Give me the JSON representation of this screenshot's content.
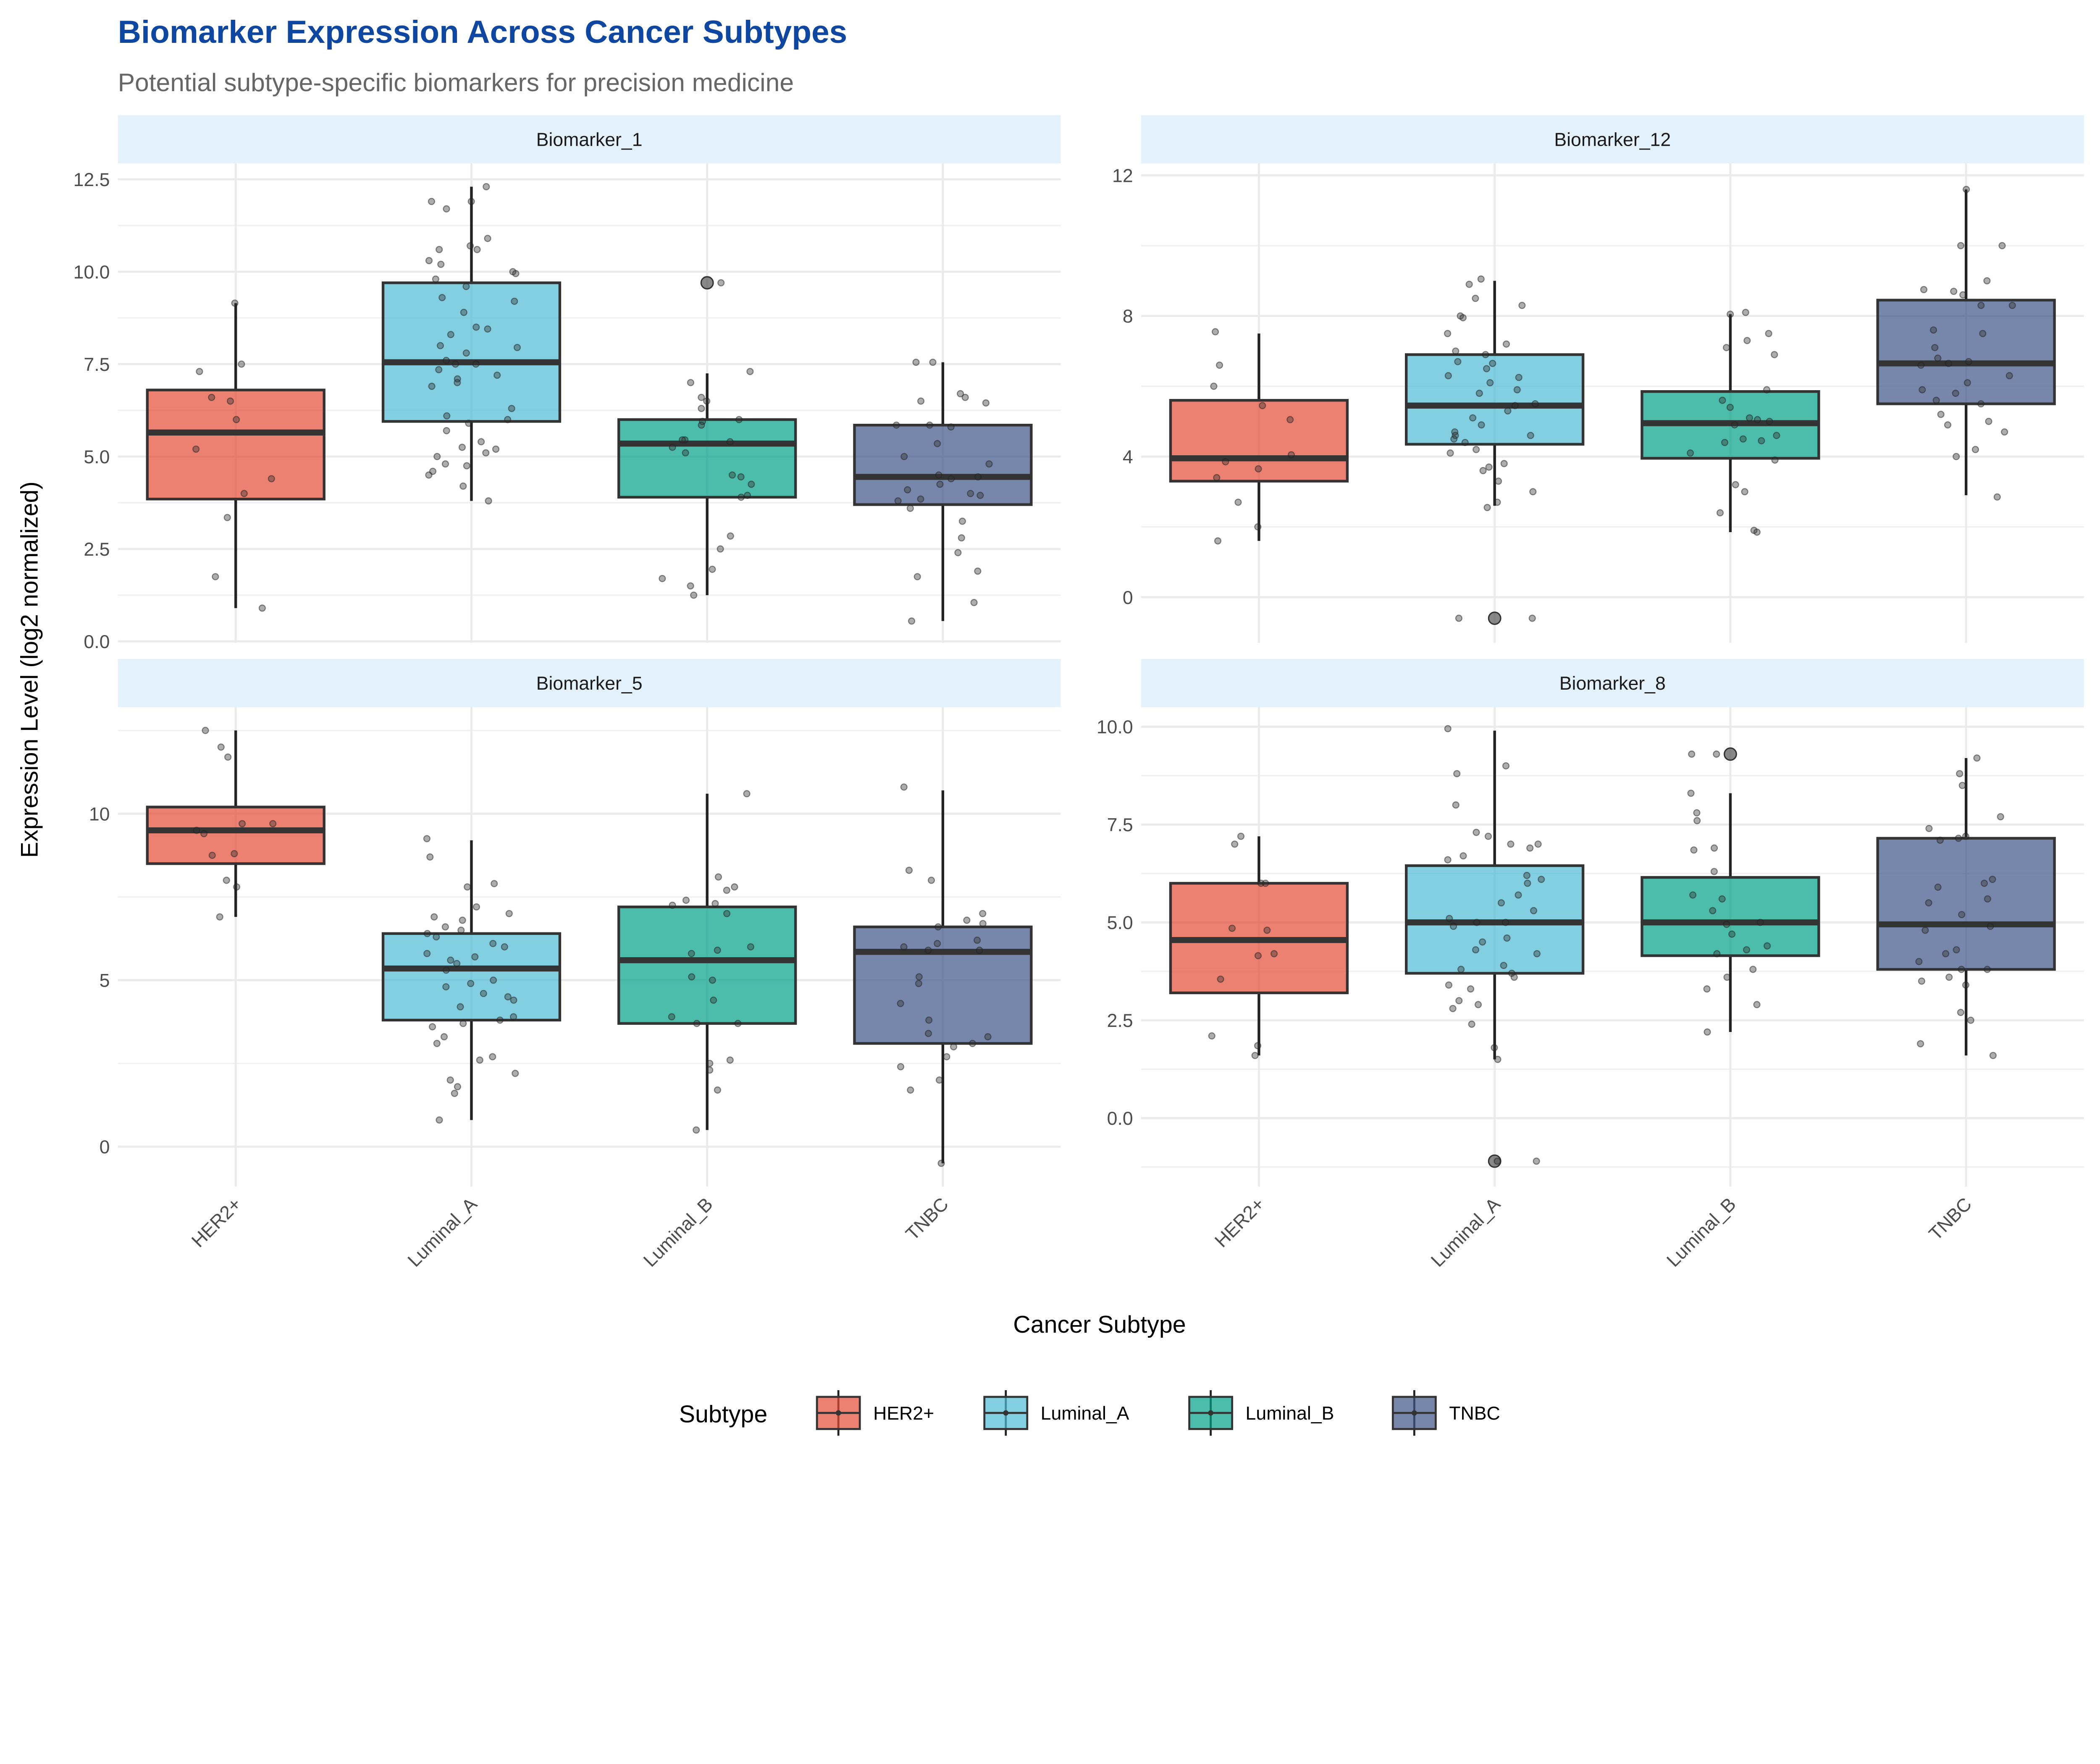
{
  "chart_data": {
    "type": "boxplot",
    "title": "Biomarker Expression Across Cancer Subtypes",
    "subtitle": "Potential subtype-specific biomarkers for precision medicine",
    "xlabel": "Cancer Subtype",
    "ylabel": "Expression Level (log2 normalized)",
    "categories": [
      "HER2+",
      "Luminal_A",
      "Luminal_B",
      "TNBC"
    ],
    "colors": {
      "HER2+": "#E64B35",
      "Luminal_A": "#4DBBD5",
      "Luminal_B": "#00A087",
      "TNBC": "#3C5488"
    },
    "legend": {
      "title": "Subtype",
      "position": "bottom",
      "entries": [
        "HER2+",
        "Luminal_A",
        "Luminal_B",
        "TNBC"
      ]
    },
    "grid": true,
    "facets": [
      {
        "name": "Biomarker_1",
        "ylim": [
          -0.04,
          12.93
        ],
        "ticks": [
          "0.0",
          "2.5",
          "5.0",
          "7.5",
          "10.0",
          "12.5"
        ],
        "tick_values": [
          0,
          2.5,
          5,
          7.5,
          10,
          12.5
        ],
        "boxes": [
          {
            "q1": 3.85,
            "median": 5.65,
            "q3": 6.8,
            "whisker_low": 0.9,
            "whisker_high": 9.15,
            "outliers": [],
            "points": [
              9.15,
              7.5,
              7.3,
              6.6,
              6.5,
              6.0,
              5.2,
              4.4,
              4.0,
              3.35,
              1.75,
              0.9
            ]
          },
          {
            "q1": 5.95,
            "median": 7.55,
            "q3": 9.7,
            "whisker_low": 3.8,
            "whisker_high": 12.3,
            "outliers": [],
            "points": [
              12.3,
              11.9,
              11.9,
              11.7,
              10.9,
              10.6,
              10.6,
              10.7,
              10.2,
              10.3,
              10.0,
              9.95,
              9.8,
              9.6,
              9.2,
              9.3,
              8.9,
              8.5,
              8.45,
              8.3,
              8.0,
              7.95,
              7.8,
              7.6,
              7.5,
              7.5,
              7.35,
              7.2,
              7.1,
              7.0,
              6.9,
              6.3,
              6.1,
              6.0,
              5.9,
              5.7,
              5.4,
              5.25,
              5.2,
              5.1,
              5.0,
              4.8,
              4.75,
              4.6,
              4.5,
              4.2,
              3.8
            ]
          },
          {
            "q1": 3.9,
            "median": 5.35,
            "q3": 6.0,
            "whisker_low": 1.25,
            "whisker_high": 7.25,
            "outliers": [
              9.7
            ],
            "points": [
              9.7,
              7.3,
              7.0,
              6.6,
              6.5,
              6.3,
              6.0,
              5.95,
              5.85,
              5.45,
              5.45,
              5.4,
              5.25,
              5.1,
              4.5,
              4.45,
              4.25,
              3.95,
              3.9,
              2.85,
              2.5,
              1.95,
              1.7,
              1.5,
              1.25
            ]
          },
          {
            "q1": 3.7,
            "median": 4.45,
            "q3": 5.85,
            "whisker_low": 0.55,
            "whisker_high": 7.55,
            "outliers": [],
            "points": [
              7.55,
              7.55,
              6.7,
              6.6,
              6.5,
              6.45,
              5.85,
              5.85,
              5.8,
              5.35,
              5.0,
              4.8,
              4.5,
              4.45,
              4.4,
              4.25,
              4.1,
              4.0,
              3.95,
              3.85,
              3.8,
              3.6,
              3.25,
              2.8,
              2.4,
              1.9,
              1.75,
              1.05,
              0.55
            ]
          }
        ]
      },
      {
        "name": "Biomarker_12",
        "ylim": [
          -1.3,
          12.34
        ],
        "ticks": [
          "0",
          "4",
          "8",
          "12"
        ],
        "tick_values": [
          0,
          4,
          8,
          12
        ],
        "boxes": [
          {
            "q1": 3.3,
            "median": 3.95,
            "q3": 5.6,
            "whisker_low": 1.6,
            "whisker_high": 7.5,
            "outliers": [],
            "points": [
              7.55,
              6.6,
              6.0,
              5.45,
              5.05,
              4.05,
              3.85,
              3.65,
              3.4,
              2.7,
              2.0,
              1.6
            ]
          },
          {
            "q1": 4.35,
            "median": 5.45,
            "q3": 6.9,
            "whisker_low": 2.6,
            "whisker_high": 9.0,
            "outliers": [
              -0.6
            ],
            "points": [
              9.05,
              8.9,
              8.5,
              8.3,
              8.0,
              7.95,
              7.5,
              7.2,
              7.0,
              6.9,
              6.7,
              6.65,
              6.5,
              6.3,
              6.25,
              6.1,
              5.9,
              5.8,
              5.5,
              5.45,
              5.3,
              5.1,
              4.9,
              4.7,
              4.6,
              4.6,
              4.5,
              4.4,
              4.2,
              4.1,
              3.8,
              3.7,
              3.6,
              3.3,
              3.0,
              2.7,
              2.55,
              -0.6,
              -0.6
            ]
          },
          {
            "q1": 3.95,
            "median": 4.95,
            "q3": 5.85,
            "whisker_low": 1.85,
            "whisker_high": 8.05,
            "outliers": [],
            "points": [
              8.1,
              8.05,
              7.5,
              7.3,
              7.1,
              6.9,
              5.9,
              5.6,
              5.4,
              5.1,
              5.05,
              5.0,
              4.9,
              4.6,
              4.5,
              4.45,
              4.4,
              4.1,
              3.9,
              3.2,
              3.0,
              2.4,
              1.9,
              1.85
            ]
          },
          {
            "q1": 5.5,
            "median": 6.65,
            "q3": 8.45,
            "whisker_low": 2.9,
            "whisker_high": 11.6,
            "outliers": [],
            "points": [
              11.6,
              10.0,
              10.0,
              9.0,
              8.75,
              8.7,
              8.6,
              8.3,
              8.3,
              7.6,
              7.5,
              7.1,
              6.8,
              6.7,
              6.65,
              6.6,
              6.3,
              6.1,
              5.9,
              5.8,
              5.6,
              5.5,
              5.2,
              5.0,
              4.9,
              4.7,
              4.2,
              4.0,
              2.85
            ]
          }
        ]
      },
      {
        "name": "Biomarker_5",
        "ylim": [
          -1.2,
          13.2
        ],
        "ticks": [
          "0",
          "5",
          "10"
        ],
        "tick_values": [
          0,
          5,
          10
        ],
        "boxes": [
          {
            "q1": 8.5,
            "median": 9.5,
            "q3": 10.2,
            "whisker_low": 6.9,
            "whisker_high": 12.5,
            "outliers": [],
            "points": [
              12.5,
              12.0,
              11.7,
              9.7,
              9.7,
              9.5,
              9.4,
              8.8,
              8.75,
              8.0,
              7.8,
              6.9
            ]
          },
          {
            "q1": 3.8,
            "median": 5.35,
            "q3": 6.4,
            "whisker_low": 0.8,
            "whisker_high": 9.2,
            "outliers": [],
            "points": [
              9.25,
              8.7,
              7.9,
              7.8,
              7.2,
              7.0,
              6.9,
              6.8,
              6.6,
              6.5,
              6.4,
              6.3,
              6.1,
              6.0,
              5.8,
              5.7,
              5.6,
              5.5,
              5.3,
              5.0,
              4.9,
              4.8,
              4.6,
              4.5,
              4.4,
              4.2,
              3.9,
              3.8,
              3.7,
              3.6,
              3.3,
              3.1,
              2.7,
              2.6,
              2.2,
              2.0,
              1.8,
              1.6,
              0.8
            ]
          },
          {
            "q1": 3.7,
            "median": 5.6,
            "q3": 7.2,
            "whisker_low": 0.5,
            "whisker_high": 10.6,
            "outliers": [],
            "points": [
              10.6,
              8.1,
              7.8,
              7.7,
              7.4,
              7.3,
              7.25,
              7.0,
              6.0,
              5.9,
              5.8,
              5.1,
              5.0,
              4.4,
              3.9,
              3.7,
              3.7,
              2.6,
              2.5,
              2.3,
              1.7,
              0.5
            ]
          },
          {
            "q1": 3.1,
            "median": 5.85,
            "q3": 6.6,
            "whisker_low": -0.5,
            "whisker_high": 10.7,
            "outliers": [],
            "points": [
              10.8,
              8.3,
              8.0,
              7.0,
              6.8,
              6.7,
              6.6,
              6.2,
              6.1,
              6.0,
              5.9,
              5.9,
              5.1,
              4.9,
              4.3,
              3.8,
              3.4,
              3.3,
              3.1,
              3.0,
              2.7,
              2.4,
              2.0,
              1.7,
              -0.5
            ]
          }
        ]
      },
      {
        "name": "Biomarker_8",
        "ylim": [
          -1.75,
          10.5
        ],
        "ticks": [
          "0.0",
          "2.5",
          "5.0",
          "7.5",
          "10.0"
        ],
        "tick_values": [
          0,
          2.5,
          5,
          7.5,
          10
        ],
        "boxes": [
          {
            "q1": 3.2,
            "median": 4.55,
            "q3": 6.0,
            "whisker_low": 1.6,
            "whisker_high": 7.2,
            "outliers": [],
            "points": [
              7.2,
              7.0,
              6.0,
              6.0,
              4.85,
              4.8,
              4.2,
              4.15,
              3.55,
              2.1,
              1.85,
              1.6
            ]
          },
          {
            "q1": 3.7,
            "median": 5.0,
            "q3": 6.45,
            "whisker_low": 1.5,
            "whisker_high": 9.9,
            "outliers": [
              -1.1
            ],
            "points": [
              9.95,
              9.0,
              8.8,
              8.0,
              7.3,
              7.2,
              7.0,
              7.0,
              6.9,
              6.7,
              6.6,
              6.2,
              6.1,
              6.0,
              5.7,
              5.5,
              5.3,
              5.1,
              5.0,
              5.0,
              4.9,
              4.6,
              4.5,
              4.3,
              4.2,
              3.9,
              3.8,
              3.7,
              3.6,
              3.4,
              3.3,
              3.0,
              2.9,
              2.8,
              2.4,
              1.8,
              1.5,
              -1.1,
              -1.1
            ]
          },
          {
            "q1": 4.15,
            "median": 5.0,
            "q3": 6.15,
            "whisker_low": 2.2,
            "whisker_high": 8.3,
            "outliers": [
              9.3
            ],
            "points": [
              9.3,
              9.3,
              8.3,
              7.8,
              7.6,
              6.9,
              6.85,
              6.3,
              5.7,
              5.6,
              5.3,
              5.0,
              4.95,
              4.7,
              4.4,
              4.3,
              4.2,
              3.8,
              3.6,
              3.3,
              2.9,
              2.2
            ]
          },
          {
            "q1": 3.8,
            "median": 4.95,
            "q3": 7.15,
            "whisker_low": 1.6,
            "whisker_high": 9.2,
            "outliers": [],
            "points": [
              9.2,
              8.8,
              8.5,
              7.7,
              7.4,
              7.2,
              7.15,
              7.1,
              6.1,
              6.0,
              5.9,
              5.6,
              5.5,
              5.2,
              4.9,
              4.8,
              4.3,
              4.2,
              4.0,
              3.8,
              3.8,
              3.6,
              3.5,
              3.4,
              2.7,
              2.5,
              1.9,
              1.6
            ]
          }
        ]
      }
    ]
  }
}
